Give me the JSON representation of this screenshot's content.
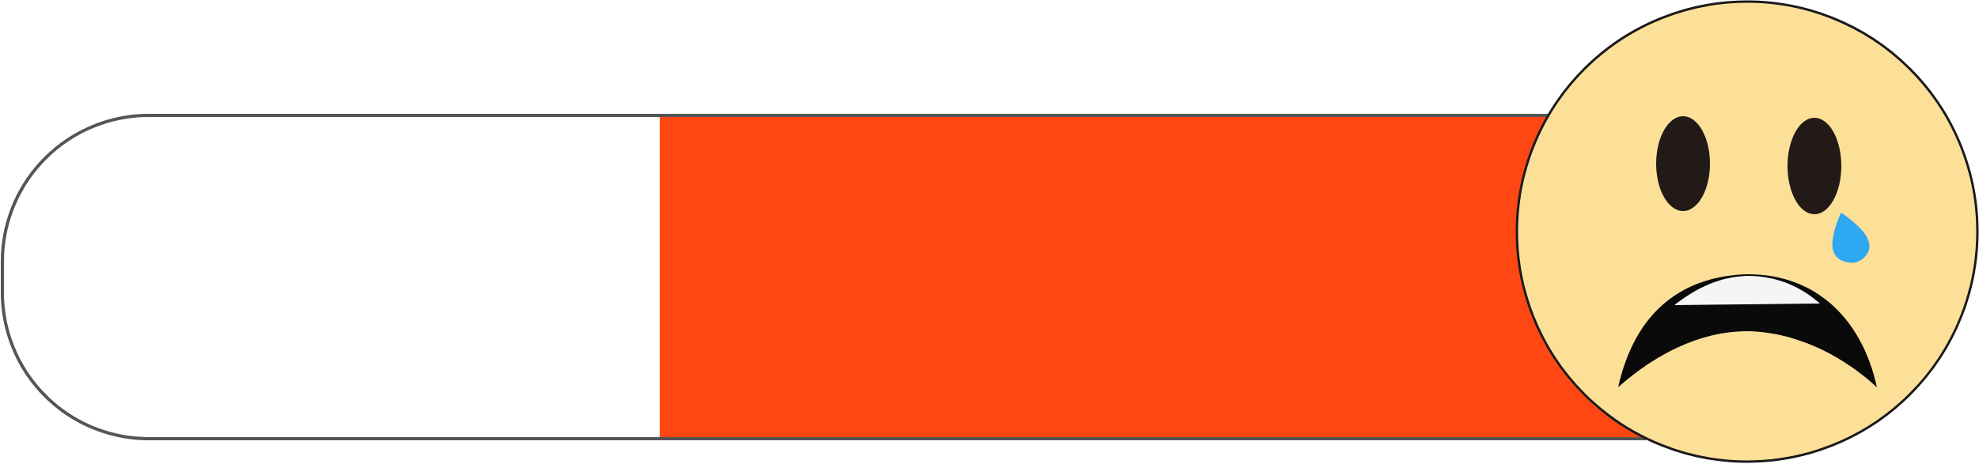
{
  "meter": {
    "level_fraction": 0.6,
    "fill_color": "#FF4713",
    "track_color": "#FFFFFF",
    "outline_color": "#555555"
  },
  "emoji": {
    "icon": "crying-face-icon",
    "face_color": "#FDE098",
    "eye_color": "#221A16",
    "tear_color": "#2FA8F2",
    "mouth_color": "#0A0A0A",
    "teeth_color": "#F5F5F5"
  }
}
